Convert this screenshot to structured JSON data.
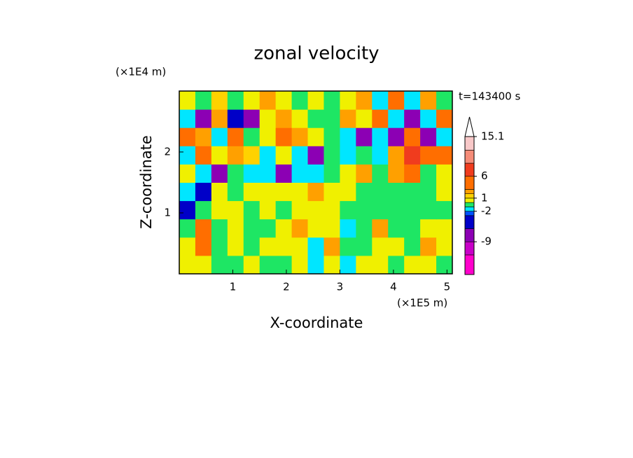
{
  "chart_data": {
    "type": "contour",
    "title": "zonal velocity",
    "x_label": "X-coordinate",
    "y_label": "Z-coordinate",
    "x_scale_label": "(×1E5 m)",
    "y_scale_label": "(×1E4 m)",
    "time_label": "t=143400 s",
    "xlim": [
      0,
      5.1
    ],
    "ylim": [
      0,
      3
    ],
    "xticks": [
      1,
      2,
      3,
      4,
      5
    ],
    "yticks": [
      1,
      2
    ],
    "x": [
      0.15,
      0.45,
      0.75,
      1.05,
      1.35,
      1.65,
      1.95,
      2.25,
      2.55,
      2.85,
      3.15,
      3.45,
      3.75,
      4.05,
      4.35,
      4.65,
      4.95
    ],
    "y": [
      0.15,
      0.45,
      0.75,
      1.05,
      1.35,
      1.65,
      1.95,
      2.25,
      2.55,
      2.85
    ],
    "z": [
      [
        0.5,
        0.5,
        -0.5,
        -0.5,
        0.5,
        -0.5,
        -0.5,
        0.5,
        -1.5,
        0.5,
        -1.5,
        0.5,
        0.5,
        -0.5,
        0.5,
        0.5,
        -0.5
      ],
      [
        0.5,
        4,
        -0.5,
        0.5,
        -0.5,
        0.5,
        0.5,
        0.5,
        -1.5,
        2,
        -0.5,
        -0.5,
        0.5,
        0.5,
        -0.5,
        2,
        0.5
      ],
      [
        -0.5,
        3,
        -0.5,
        0.5,
        -0.5,
        -0.5,
        0.5,
        2,
        0.5,
        0.5,
        -1.5,
        -0.5,
        2,
        -0.5,
        -0.5,
        0.5,
        0.5
      ],
      [
        -4,
        -0.5,
        0.5,
        0.5,
        -0.5,
        0.5,
        -0.5,
        0.5,
        0.5,
        0.5,
        -0.5,
        -0.5,
        -0.5,
        -0.5,
        -0.5,
        -0.5,
        -0.5
      ],
      [
        -1.5,
        -4,
        0.5,
        -0.5,
        0.5,
        0.5,
        0.5,
        0.5,
        2,
        0.5,
        0.5,
        -0.5,
        -0.5,
        -0.5,
        -0.5,
        -0.5,
        0.5
      ],
      [
        0.5,
        -1.5,
        -7,
        -0.5,
        -1.5,
        -1.5,
        -7,
        -1.5,
        -1.5,
        -0.5,
        0.5,
        2,
        -0.5,
        2,
        4,
        -0.5,
        0.5
      ],
      [
        -1.5,
        4,
        0.5,
        2,
        1.5,
        -1.5,
        0.5,
        -1.5,
        -8,
        -0.5,
        -1.5,
        -0.5,
        -1.5,
        2,
        7,
        3,
        4
      ],
      [
        4,
        2,
        -1.5,
        4,
        -0.5,
        0.5,
        4,
        2,
        0.5,
        -0.5,
        -1.5,
        -7,
        -1.5,
        -7,
        4,
        -8,
        -1.5
      ],
      [
        -1.5,
        -8,
        2,
        -4,
        -7,
        0.5,
        2,
        0.5,
        -0.5,
        -0.5,
        2,
        0.5,
        4,
        -1.5,
        -8,
        -1.5,
        4
      ],
      [
        0.5,
        -0.5,
        1.5,
        -0.5,
        0.5,
        2,
        0.5,
        -0.5,
        0.5,
        -0.5,
        0.5,
        2,
        -1.5,
        4,
        -1.5,
        2,
        -0.5
      ]
    ],
    "colorbar": {
      "levels": [
        -16.5,
        -12,
        -9,
        -6,
        -3,
        -2,
        -1,
        0,
        1,
        2,
        3,
        6,
        9,
        12,
        15.1
      ],
      "colors": [
        "#ff00cc",
        "#c800c8",
        "#8c00b4",
        "#0000c8",
        "#0050ff",
        "#00e6ff",
        "#1ee664",
        "#f0f000",
        "#ffd200",
        "#ffa000",
        "#ff6e00",
        "#f03c1e",
        "#f58c78",
        "#f8c8c8"
      ],
      "extend_color": "#ffffff",
      "ticks": [
        15.1,
        6,
        1,
        -2,
        -9
      ]
    }
  }
}
